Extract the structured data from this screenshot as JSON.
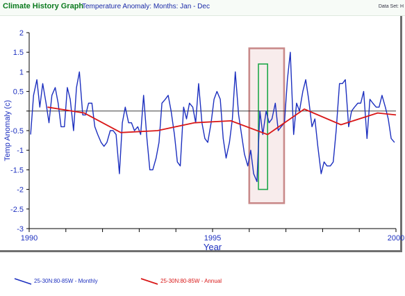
{
  "header": {
    "app_title": "Climate History Graph",
    "subtitle": "Temperature Anomaly: Months: Jan - Dec",
    "dataset_label": "Data Set: H"
  },
  "colors": {
    "monthly": "#1c2fbf",
    "annual": "#d91818",
    "highlight_outer": "#c98a8a",
    "highlight_inner": "#1fa84a",
    "axis": "#000000"
  },
  "legend": {
    "monthly_label": "25-30N:80-85W   - Monthly",
    "annual_label": "25-30N:80-85W   - Annual"
  },
  "chart_data": {
    "type": "line",
    "xlabel": "Year",
    "ylabel": "Temp Anomaly (c)",
    "xlim": [
      1990,
      2000
    ],
    "ylim": [
      -3,
      2
    ],
    "x_ticks": [
      1990,
      1995,
      2000
    ],
    "y_ticks": [
      2,
      1.5,
      1,
      0.5,
      0,
      -0.5,
      -1,
      -1.5,
      -2,
      -2.5,
      -3
    ],
    "x_tick_labels": [
      "1990",
      "1995",
      "2000"
    ],
    "y_tick_labels": [
      "2",
      "1.5",
      "1",
      "0.5",
      "",
      "-0.5",
      "-1",
      "-1.5",
      "-2",
      "-2.5",
      "-3"
    ],
    "grid": false,
    "zero_line": true,
    "series": [
      {
        "name": "25-30N:80-85W - Monthly",
        "x": [
          1990.04,
          1990.12,
          1990.21,
          1990.29,
          1990.37,
          1990.46,
          1990.54,
          1990.62,
          1990.71,
          1990.79,
          1990.87,
          1990.96,
          1991.04,
          1991.12,
          1991.21,
          1991.29,
          1991.37,
          1991.46,
          1991.54,
          1991.62,
          1991.71,
          1991.79,
          1991.87,
          1991.96,
          1992.04,
          1992.12,
          1992.21,
          1992.29,
          1992.37,
          1992.46,
          1992.54,
          1992.62,
          1992.71,
          1992.79,
          1992.87,
          1992.96,
          1993.04,
          1993.12,
          1993.21,
          1993.29,
          1993.37,
          1993.46,
          1993.54,
          1993.62,
          1993.71,
          1993.79,
          1993.87,
          1993.96,
          1994.04,
          1994.12,
          1994.21,
          1994.29,
          1994.37,
          1994.46,
          1994.54,
          1994.62,
          1994.71,
          1994.79,
          1994.87,
          1994.96,
          1995.04,
          1995.12,
          1995.21,
          1995.29,
          1995.37,
          1995.46,
          1995.54,
          1995.62,
          1995.71,
          1995.79,
          1995.87,
          1995.96,
          1996.04,
          1996.12,
          1996.21,
          1996.29,
          1996.37,
          1996.46,
          1996.54,
          1996.62,
          1996.71,
          1996.79,
          1996.87,
          1996.96,
          1997.04,
          1997.12,
          1997.21,
          1997.29,
          1997.37,
          1997.46,
          1997.54,
          1997.62,
          1997.71,
          1997.79,
          1997.87,
          1997.96,
          1998.04,
          1998.12,
          1998.21,
          1998.29,
          1998.37,
          1998.46,
          1998.54,
          1998.62,
          1998.71,
          1998.79,
          1998.87,
          1998.96,
          1999.04,
          1999.12,
          1999.21,
          1999.29,
          1999.37,
          1999.46,
          1999.54,
          1999.62,
          1999.71,
          1999.79,
          1999.87,
          1999.96
        ],
        "y": [
          -0.6,
          0.4,
          0.8,
          0.1,
          0.7,
          0.2,
          -0.3,
          0.4,
          0.6,
          0.2,
          -0.4,
          -0.4,
          0.6,
          0.3,
          -0.5,
          0.6,
          1.0,
          -0.1,
          -0.1,
          0.2,
          0.2,
          -0.4,
          -0.6,
          -0.8,
          -0.9,
          -0.8,
          -0.5,
          -0.5,
          -0.6,
          -1.6,
          -0.3,
          0.1,
          -0.3,
          -0.3,
          -0.5,
          -0.4,
          -0.6,
          0.4,
          -0.7,
          -1.5,
          -1.5,
          -1.2,
          -0.8,
          0.2,
          0.3,
          0.4,
          0.0,
          -0.6,
          -1.3,
          -1.4,
          0.1,
          -0.2,
          0.2,
          0.1,
          -0.3,
          0.7,
          -0.3,
          -0.7,
          -0.8,
          -0.3,
          0.3,
          0.5,
          0.3,
          -0.7,
          -1.2,
          -0.8,
          -0.2,
          1.0,
          -0.1,
          -0.6,
          -1.1,
          -1.4,
          -1.0,
          -1.6,
          -1.8,
          0.0,
          -0.6,
          0.0,
          -0.3,
          -0.2,
          0.2,
          -0.5,
          -0.4,
          -0.3,
          0.8,
          1.5,
          -0.6,
          0.2,
          0.0,
          0.5,
          0.8,
          0.3,
          -0.4,
          -0.2,
          -0.9,
          -1.6,
          -1.3,
          -1.4,
          -1.4,
          -1.3,
          -0.5,
          0.7,
          0.7,
          0.8,
          -0.4,
          0.0,
          0.1,
          0.2,
          0.2,
          0.5,
          -0.7,
          0.3,
          0.2,
          0.1,
          0.1,
          0.4,
          0.1,
          -0.2,
          -0.7,
          -0.8
        ]
      },
      {
        "name": "25-30N:80-85W - Annual",
        "x": [
          1990.5,
          1991.5,
          1992.5,
          1993.5,
          1994.5,
          1995.5,
          1996.5,
          1997.5,
          1998.5,
          1999.5,
          2000.0
        ],
        "y": [
          0.1,
          -0.05,
          -0.55,
          -0.5,
          -0.3,
          -0.25,
          -0.6,
          0.05,
          -0.35,
          -0.05,
          -0.1
        ]
      }
    ],
    "highlight_regions": [
      {
        "x_range": [
          1996.0,
          1996.95
        ],
        "y_range": [
          -2.35,
          1.6
        ]
      },
      {
        "x_range": [
          1996.25,
          1996.5
        ],
        "y_range": [
          -2.0,
          1.2
        ]
      }
    ]
  }
}
